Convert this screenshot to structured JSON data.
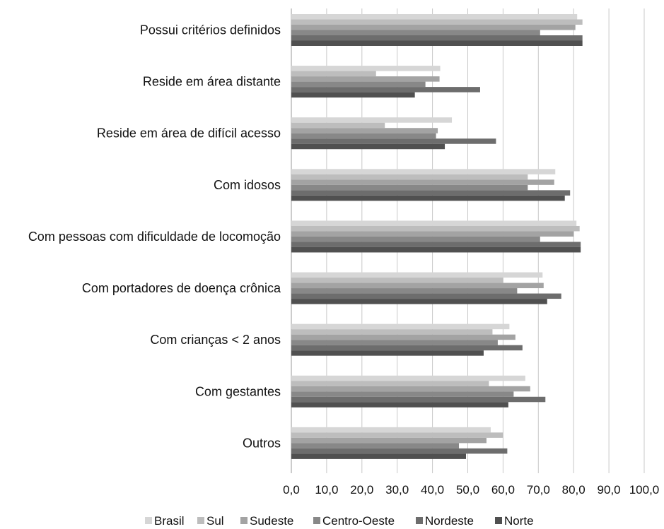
{
  "chart_data": {
    "type": "bar",
    "orientation": "horizontal",
    "title": "",
    "xlabel": "",
    "ylabel": "",
    "xlim": [
      0,
      100
    ],
    "x_ticks": [
      "0,0",
      "10,0",
      "20,0",
      "30,0",
      "40,0",
      "50,0",
      "60,0",
      "70,0",
      "80,0",
      "90,0",
      "100,0"
    ],
    "grid": true,
    "legend_position": "bottom",
    "categories": [
      "Possui critérios definidos",
      "Reside em área distante",
      "Reside em área de difícil acesso",
      "Com idosos",
      "Com pessoas com dificuldade de locomoção",
      "Com portadores de doença crônica",
      "Com crianças < 2 anos",
      "Com gestantes",
      "Outros"
    ],
    "series": [
      {
        "name": "Brasil",
        "color": "#d6d6d6",
        "values": [
          81.0,
          42.2,
          45.5,
          74.8,
          80.8,
          71.2,
          61.8,
          66.3,
          56.5
        ]
      },
      {
        "name": "Sul",
        "color": "#bdbdbd",
        "values": [
          82.5,
          24.0,
          26.5,
          67.0,
          81.7,
          60.0,
          57.0,
          56.0,
          60.0
        ]
      },
      {
        "name": "Sudeste",
        "color": "#a3a3a3",
        "values": [
          80.5,
          42.0,
          41.5,
          74.5,
          80.0,
          71.5,
          63.5,
          67.7,
          55.3
        ]
      },
      {
        "name": "Centro-Oeste",
        "color": "#888888",
        "values": [
          70.5,
          38.0,
          41.0,
          67.0,
          70.5,
          64.0,
          58.5,
          63.0,
          47.5
        ]
      },
      {
        "name": "Nordeste",
        "color": "#6d6d6d",
        "values": [
          82.5,
          53.5,
          58.0,
          79.0,
          82.0,
          76.5,
          65.5,
          72.0,
          61.2
        ]
      },
      {
        "name": "Norte",
        "color": "#505050",
        "values": [
          82.5,
          35.0,
          43.5,
          77.5,
          82.0,
          72.5,
          54.5,
          61.5,
          49.5
        ]
      }
    ]
  }
}
